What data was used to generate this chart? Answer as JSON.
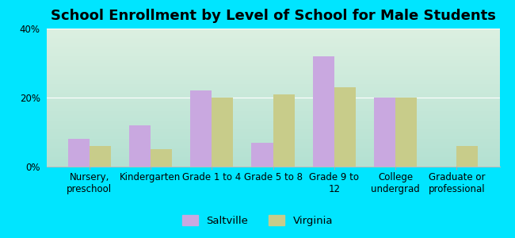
{
  "title": "School Enrollment by Level of School for Male Students",
  "categories": [
    "Nursery,\npreschool",
    "Kindergarten",
    "Grade 1 to 4",
    "Grade 5 to 8",
    "Grade 9 to\n12",
    "College\nundergrad",
    "Graduate or\nprofessional"
  ],
  "saltville": [
    8,
    12,
    22,
    7,
    32,
    20,
    0
  ],
  "virginia": [
    6,
    5,
    20,
    21,
    23,
    20,
    6
  ],
  "saltville_color": "#c9a8e0",
  "virginia_color": "#c8cc8a",
  "background_outer": "#00e5ff",
  "grad_top_left": "#d4ede0",
  "grad_top_right": "#f0f8f0",
  "grad_bottom_left": "#b8e8d8",
  "grad_bottom_right": "#e0f4e8",
  "ylim": [
    0,
    40
  ],
  "yticks": [
    0,
    20,
    40
  ],
  "ytick_labels": [
    "0%",
    "20%",
    "40%"
  ],
  "bar_width": 0.35,
  "legend_labels": [
    "Saltville",
    "Virginia"
  ],
  "title_fontsize": 13,
  "tick_fontsize": 8.5
}
